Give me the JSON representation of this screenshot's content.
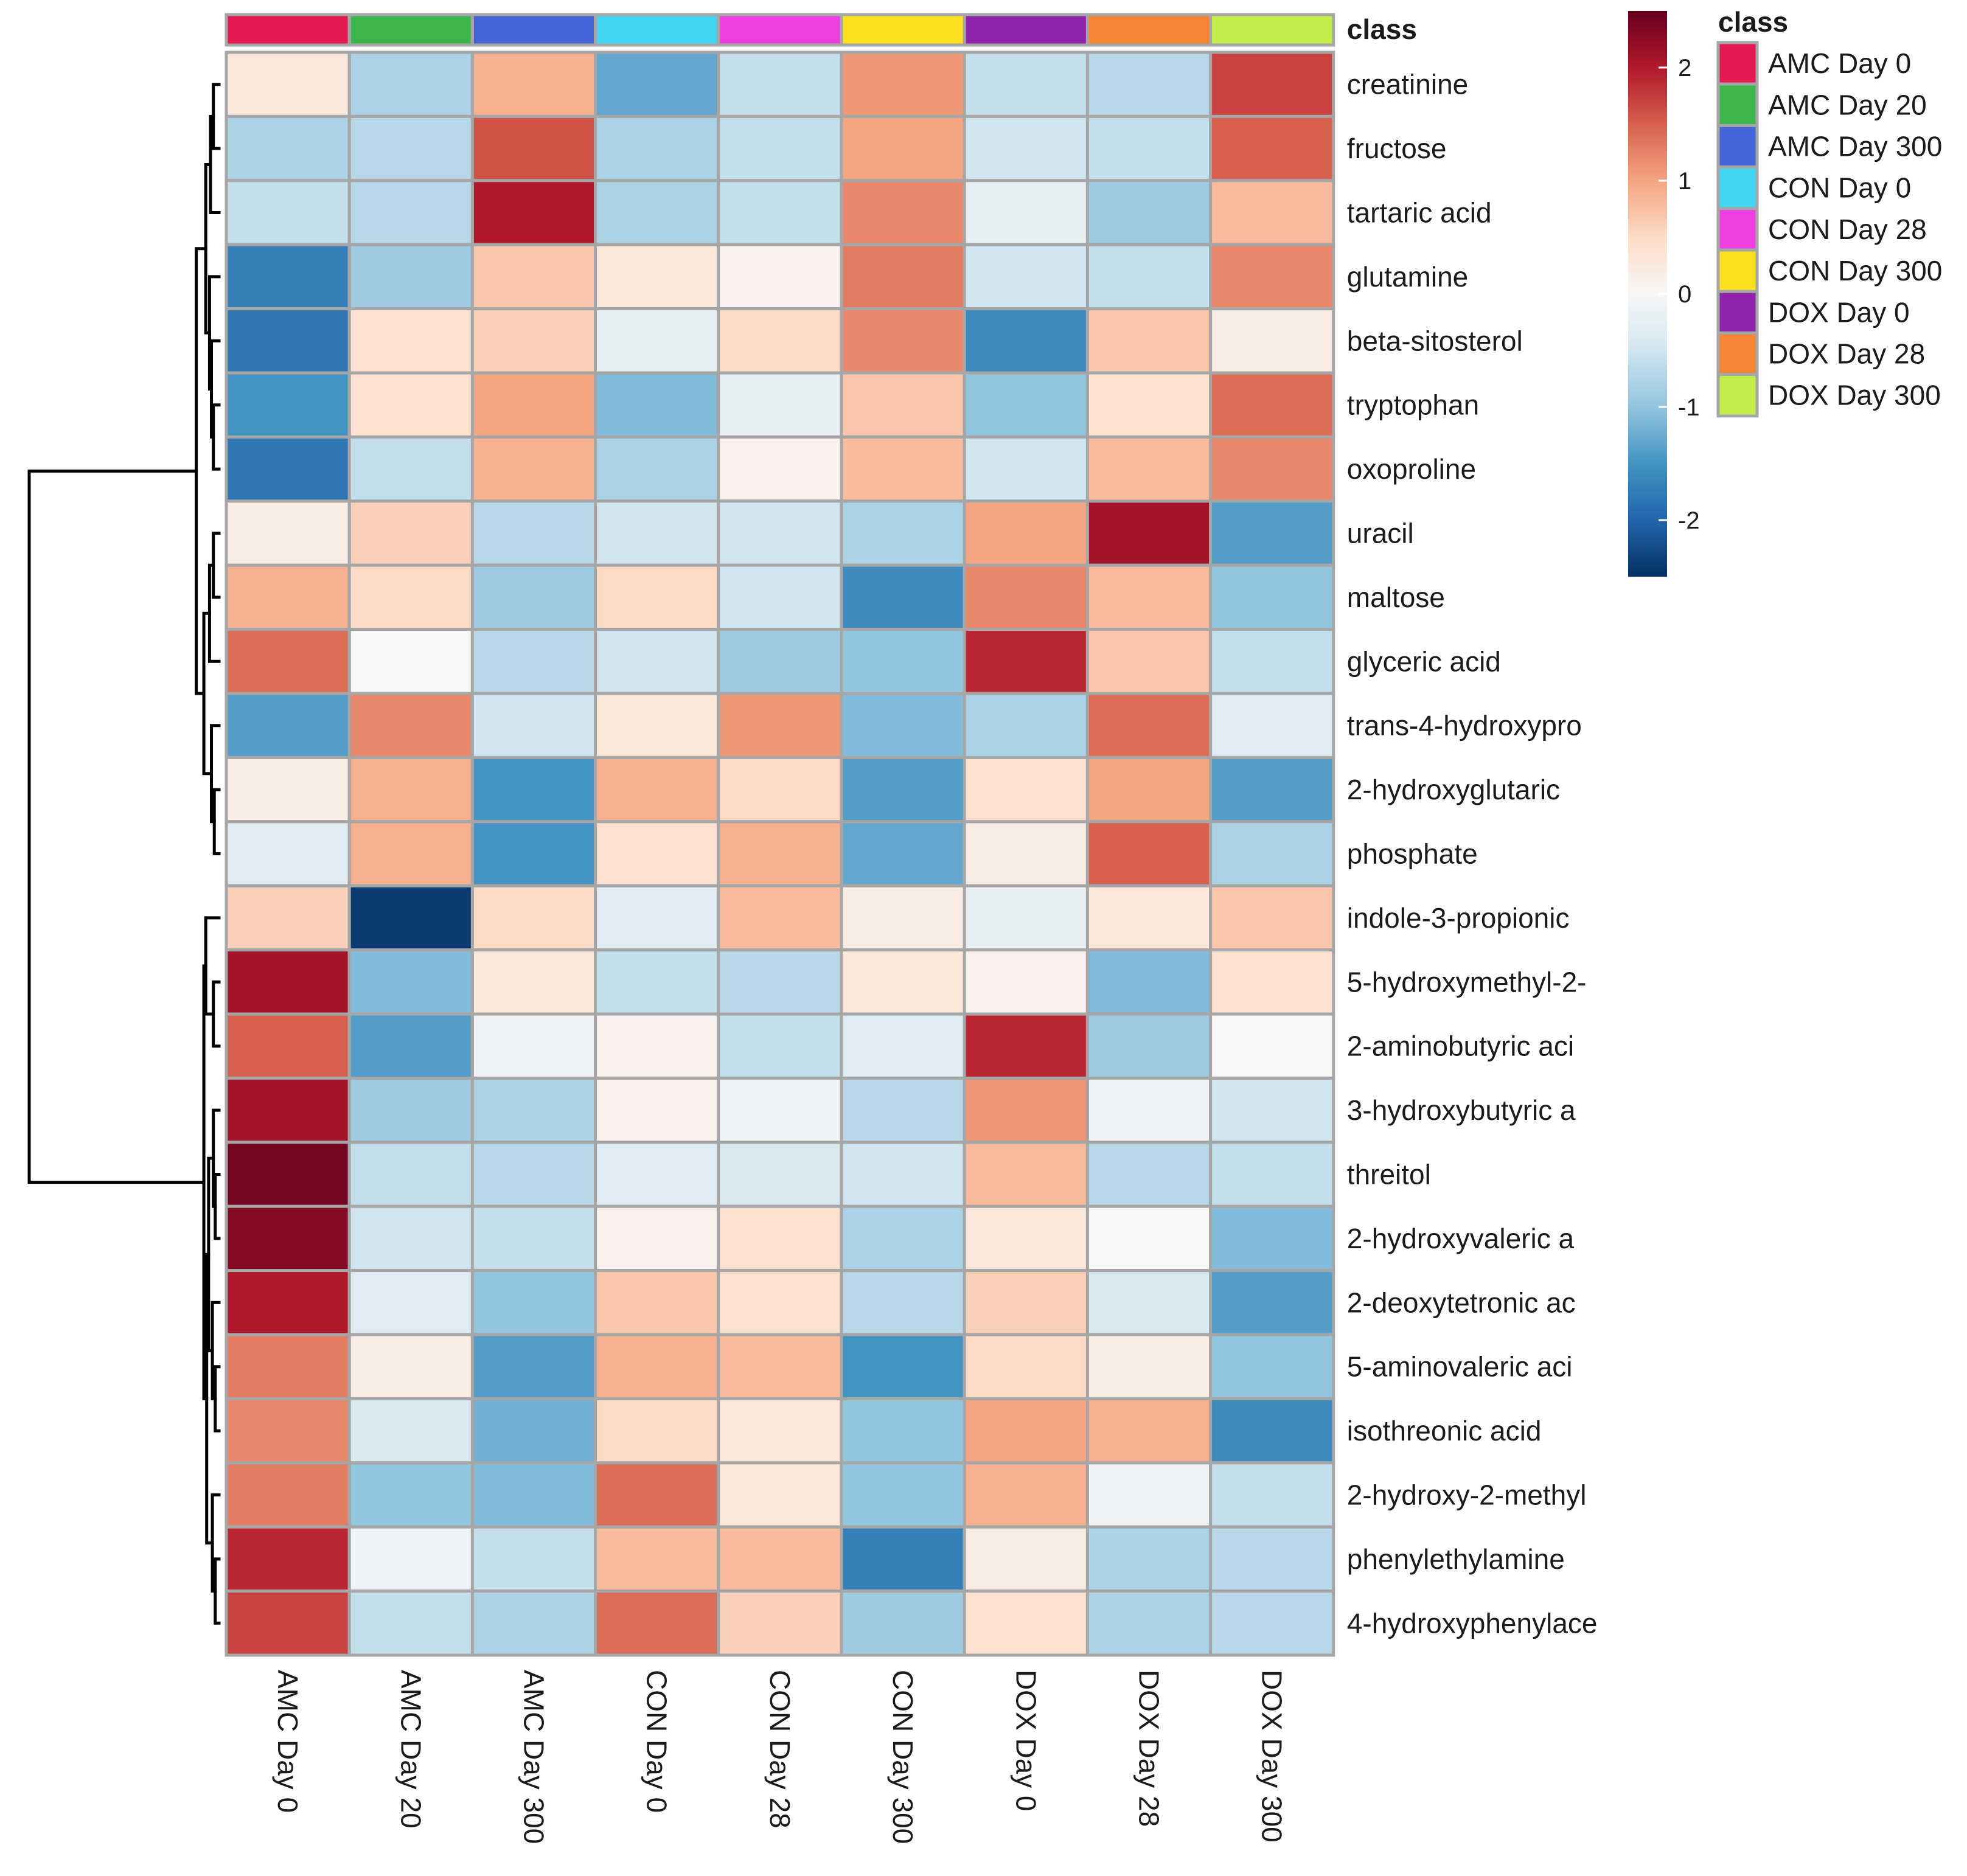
{
  "chart_data": {
    "type": "heatmap",
    "columns": [
      "AMC Day 0",
      "AMC Day 20",
      "AMC Day 300",
      "CON Day 0",
      "CON Day 28",
      "CON Day 300",
      "DOX Day 0",
      "DOX Day 28",
      "DOX Day 300"
    ],
    "rows": [
      "creatinine",
      "fructose",
      "tartaric acid",
      "glutamine",
      "beta-sitosterol",
      "tryptophan",
      "oxoproline",
      "uracil",
      "maltose",
      "glyceric acid",
      "trans-4-hydroxypro",
      "2-hydroxyglutaric",
      "phosphate",
      "indole-3-propionic",
      "5-hydroxymethyl-2-",
      "2-aminobutyric aci",
      "3-hydroxybutyric a",
      "threitol",
      "2-hydroxyvaleric a",
      "2-deoxytetronic ac",
      "5-aminovaleric aci",
      "isothreonic acid",
      "2-hydroxy-2-methyl",
      "phenylethylamine",
      "4-hydroxyphenylace"
    ],
    "values": [
      [
        0.3,
        -0.8,
        0.9,
        -1.3,
        -0.6,
        1.1,
        -0.6,
        -0.7,
        1.7
      ],
      [
        -0.8,
        -0.7,
        1.6,
        -0.8,
        -0.6,
        1.0,
        -0.5,
        -0.6,
        1.5
      ],
      [
        -0.6,
        -0.7,
        2.0,
        -0.8,
        -0.6,
        1.2,
        -0.2,
        -0.9,
        0.8
      ],
      [
        -1.7,
        -0.9,
        0.7,
        0.3,
        0.1,
        1.3,
        -0.5,
        -0.6,
        1.2
      ],
      [
        -1.8,
        0.4,
        0.6,
        -0.2,
        0.5,
        1.2,
        -1.6,
        0.7,
        0.2
      ],
      [
        -1.5,
        0.4,
        1.0,
        -1.1,
        -0.2,
        0.7,
        -1.0,
        0.4,
        1.4
      ],
      [
        -1.8,
        -0.6,
        0.9,
        -0.8,
        0.1,
        0.8,
        -0.5,
        0.8,
        1.2
      ],
      [
        0.2,
        0.6,
        -0.7,
        -0.5,
        -0.5,
        -0.8,
        1.0,
        2.1,
        -1.4
      ],
      [
        0.9,
        0.5,
        -0.9,
        0.5,
        -0.5,
        -1.6,
        1.2,
        0.8,
        -1.0
      ],
      [
        1.4,
        0.0,
        -0.7,
        -0.5,
        -0.9,
        -1.0,
        1.9,
        0.7,
        -0.6
      ],
      [
        -1.4,
        1.2,
        -0.5,
        0.3,
        1.1,
        -1.1,
        -0.8,
        1.4,
        -0.3
      ],
      [
        0.2,
        0.9,
        -1.5,
        0.9,
        0.5,
        -1.4,
        0.4,
        1.0,
        -1.4
      ],
      [
        -0.3,
        0.9,
        -1.5,
        0.4,
        0.9,
        -1.3,
        0.2,
        1.5,
        -0.8
      ],
      [
        0.6,
        -2.4,
        0.5,
        -0.3,
        0.8,
        0.2,
        -0.2,
        0.3,
        0.7
      ],
      [
        2.1,
        -1.1,
        0.3,
        -0.6,
        -0.7,
        0.3,
        0.1,
        -1.1,
        0.4
      ],
      [
        1.5,
        -1.4,
        -0.1,
        0.1,
        -0.6,
        -0.3,
        1.9,
        -0.9,
        0.0
      ],
      [
        2.1,
        -0.9,
        -0.8,
        0.1,
        -0.1,
        -0.7,
        1.1,
        -0.1,
        -0.5
      ],
      [
        2.4,
        -0.6,
        -0.7,
        -0.3,
        -0.4,
        -0.5,
        0.8,
        -0.7,
        -0.6
      ],
      [
        2.3,
        -0.5,
        -0.6,
        0.1,
        0.4,
        -0.8,
        0.3,
        0.0,
        -1.1
      ],
      [
        2.0,
        -0.3,
        -1.0,
        0.7,
        0.4,
        -0.7,
        0.6,
        -0.4,
        -1.4
      ],
      [
        1.3,
        0.2,
        -1.4,
        0.9,
        0.8,
        -1.5,
        0.5,
        0.2,
        -1.0
      ],
      [
        1.2,
        -0.4,
        -1.2,
        0.5,
        0.3,
        -1.0,
        1.0,
        0.9,
        -1.6
      ],
      [
        1.3,
        -1.0,
        -1.1,
        1.4,
        0.3,
        -1.0,
        0.9,
        -0.1,
        -0.6
      ],
      [
        1.9,
        -0.1,
        -0.6,
        0.8,
        0.8,
        -1.7,
        0.2,
        -0.8,
        -0.7
      ],
      [
        1.7,
        -0.6,
        -0.8,
        1.4,
        0.6,
        -0.9,
        0.4,
        -0.8,
        -0.7
      ]
    ],
    "color_scale": {
      "range": [
        -2.5,
        2.5
      ],
      "ticks": [
        2,
        1,
        0,
        -1,
        -2
      ],
      "tick_labels": [
        "2",
        "1",
        "0",
        "-1",
        "-2"
      ],
      "stops": [
        "#053061",
        "#2166ac",
        "#4393c3",
        "#92c5de",
        "#d1e5f0",
        "#f7f7f7",
        "#fddbc7",
        "#f4a582",
        "#d6604d",
        "#b2182b",
        "#67001f"
      ]
    },
    "annotation": {
      "title": "class",
      "items": [
        {
          "label": "AMC Day 0",
          "color": "#e31a4f"
        },
        {
          "label": "AMC Day 20",
          "color": "#3cb54a"
        },
        {
          "label": "AMC Day 300",
          "color": "#4365d8"
        },
        {
          "label": "CON Day 0",
          "color": "#40d5f5"
        },
        {
          "label": "CON Day 28",
          "color": "#ee3de0"
        },
        {
          "label": "CON Day 300",
          "color": "#fde11e"
        },
        {
          "label": "DOX Day 0",
          "color": "#8e24aa"
        },
        {
          "label": "DOX Day 28",
          "color": "#f58433"
        },
        {
          "label": "DOX Day 300",
          "color": "#c2ee4a"
        }
      ]
    },
    "legend_position": "right",
    "row_dendrogram": true
  }
}
